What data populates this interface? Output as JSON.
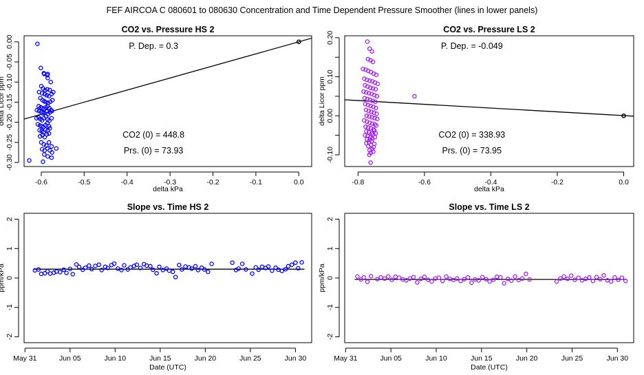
{
  "page_title": "FEF   AIRCOA C   080601 to 080630   Concentration and Time Dependent Pressure Smoother (lines in lower panels)",
  "colors": {
    "hs": "#0000ff",
    "ls": "#a020f0",
    "line": "#000000"
  },
  "chart_data": [
    {
      "type": "scatter",
      "title": "CO2 vs. Pressure HS 2",
      "xlabel": "delta kPa",
      "ylabel": "delta Licor ppm",
      "xlim": [
        -0.64,
        0.03
      ],
      "ylim": [
        -0.31,
        0.015
      ],
      "xticks": [
        -0.6,
        -0.5,
        -0.4,
        -0.3,
        -0.2,
        -0.1,
        0.0
      ],
      "xtick_labels": [
        "-0.6",
        "-0.5",
        "-0.4",
        "-0.3",
        "-0.2",
        "-0.1",
        "0.0"
      ],
      "yticks": [
        0.0,
        -0.05,
        -0.1,
        -0.15,
        -0.2,
        -0.25,
        -0.3
      ],
      "ytick_labels": [
        "0.00",
        "-0.05",
        "-0.10",
        "-0.15",
        "-0.20",
        "-0.25",
        "-0.30"
      ],
      "annotations": [
        "P. Dep. =  0.3",
        "CO2 (0) =  448.8",
        "Prs. (0) = 73.93"
      ],
      "fit_line": {
        "x": [
          -0.64,
          0.03
        ],
        "y": [
          -0.192,
          0.009
        ]
      },
      "reference_point": [
        0.0,
        0.0
      ],
      "x": [
        -0.609,
        -0.601,
        -0.594,
        -0.593,
        -0.585,
        -0.586,
        -0.585,
        -0.578,
        -0.6,
        -0.596,
        -0.591,
        -0.586,
        -0.58,
        -0.605,
        -0.598,
        -0.592,
        -0.587,
        -0.582,
        -0.576,
        -0.572,
        -0.602,
        -0.597,
        -0.593,
        -0.589,
        -0.584,
        -0.579,
        -0.574,
        -0.606,
        -0.601,
        -0.597,
        -0.593,
        -0.589,
        -0.585,
        -0.581,
        -0.577,
        -0.61,
        -0.605,
        -0.6,
        -0.596,
        -0.592,
        -0.588,
        -0.584,
        -0.58,
        -0.575,
        -0.611,
        -0.606,
        -0.602,
        -0.598,
        -0.594,
        -0.589,
        -0.585,
        -0.581,
        -0.576,
        -0.608,
        -0.603,
        -0.599,
        -0.595,
        -0.59,
        -0.586,
        -0.582,
        -0.604,
        -0.599,
        -0.595,
        -0.59,
        -0.585,
        -0.58,
        -0.603,
        -0.597,
        -0.592,
        -0.587,
        -0.582,
        -0.6,
        -0.594,
        -0.588,
        -0.582,
        -0.576,
        -0.565,
        -0.598,
        -0.592,
        -0.586,
        -0.58,
        -0.575,
        -0.593,
        -0.585,
        -0.576,
        -0.628,
        -0.596
      ],
      "y": [
        -0.005,
        -0.065,
        -0.078,
        -0.08,
        -0.08,
        -0.083,
        -0.09,
        -0.1,
        -0.11,
        -0.116,
        -0.12,
        -0.118,
        -0.12,
        -0.125,
        -0.128,
        -0.13,
        -0.133,
        -0.135,
        -0.13,
        -0.125,
        -0.14,
        -0.145,
        -0.148,
        -0.15,
        -0.152,
        -0.149,
        -0.145,
        -0.16,
        -0.163,
        -0.165,
        -0.167,
        -0.163,
        -0.16,
        -0.165,
        -0.17,
        -0.17,
        -0.172,
        -0.175,
        -0.178,
        -0.177,
        -0.173,
        -0.18,
        -0.175,
        -0.172,
        -0.19,
        -0.188,
        -0.192,
        -0.195,
        -0.19,
        -0.185,
        -0.193,
        -0.196,
        -0.19,
        -0.205,
        -0.208,
        -0.21,
        -0.212,
        -0.207,
        -0.203,
        -0.21,
        -0.22,
        -0.222,
        -0.225,
        -0.218,
        -0.22,
        -0.215,
        -0.235,
        -0.232,
        -0.237,
        -0.23,
        -0.228,
        -0.25,
        -0.255,
        -0.258,
        -0.25,
        -0.26,
        -0.265,
        -0.267,
        -0.27,
        -0.265,
        -0.27,
        -0.275,
        -0.28,
        -0.285,
        -0.288,
        -0.295,
        -0.298
      ]
    },
    {
      "type": "scatter",
      "title": "CO2 vs. Pressure LS 2",
      "xlabel": "delta kPa",
      "ylabel": "delta Licor ppm",
      "xlim": [
        -0.84,
        0.03
      ],
      "ylim": [
        -0.13,
        0.205
      ],
      "xticks": [
        -0.8,
        -0.6,
        -0.4,
        -0.2,
        0.0
      ],
      "xtick_labels": [
        "-0.8",
        "-0.6",
        "-0.4",
        "-0.2",
        "0.0"
      ],
      "yticks": [
        0.2,
        0.15,
        0.1,
        0.05,
        0.0,
        -0.05,
        -0.1
      ],
      "ytick_labels": [
        "0.20",
        "",
        "0.10",
        "",
        "0.00",
        "",
        "-0.10"
      ],
      "annotations": [
        "P. Dep. =  -0.049",
        "CO2 (0) =  338.93",
        "Prs. (0) = 73.95"
      ],
      "fit_line": {
        "x": [
          -0.84,
          0.03
        ],
        "y": [
          0.041,
          -0.001
        ]
      },
      "reference_point": [
        0.0,
        0.0
      ],
      "x": [
        -0.772,
        -0.765,
        -0.758,
        -0.77,
        -0.762,
        -0.755,
        -0.785,
        -0.777,
        -0.769,
        -0.761,
        -0.753,
        -0.745,
        -0.781,
        -0.773,
        -0.765,
        -0.757,
        -0.749,
        -0.741,
        -0.779,
        -0.771,
        -0.763,
        -0.755,
        -0.747,
        -0.783,
        -0.775,
        -0.767,
        -0.759,
        -0.751,
        -0.743,
        -0.78,
        -0.772,
        -0.764,
        -0.756,
        -0.748,
        -0.778,
        -0.77,
        -0.762,
        -0.754,
        -0.746,
        -0.776,
        -0.768,
        -0.76,
        -0.752,
        -0.744,
        -0.774,
        -0.766,
        -0.758,
        -0.75,
        -0.742,
        -0.781,
        -0.773,
        -0.765,
        -0.757,
        -0.749,
        -0.777,
        -0.769,
        -0.761,
        -0.753,
        -0.745,
        -0.775,
        -0.767,
        -0.759,
        -0.751,
        -0.779,
        -0.771,
        -0.763,
        -0.755,
        -0.747,
        -0.773,
        -0.765,
        -0.757,
        -0.749,
        -0.775,
        -0.767,
        -0.759,
        -0.751,
        -0.769,
        -0.761,
        -0.753,
        -0.765,
        -0.757,
        -0.762,
        -0.754,
        -0.766,
        -0.63,
        -0.762
      ],
      "y": [
        0.19,
        0.172,
        0.165,
        0.145,
        0.142,
        0.138,
        0.12,
        0.118,
        0.115,
        0.112,
        0.108,
        0.105,
        0.095,
        0.092,
        0.09,
        0.088,
        0.085,
        0.082,
        0.078,
        0.075,
        0.072,
        0.07,
        0.068,
        0.062,
        0.06,
        0.058,
        0.056,
        0.053,
        0.05,
        0.045,
        0.043,
        0.041,
        0.038,
        0.036,
        0.03,
        0.028,
        0.025,
        0.023,
        0.02,
        0.015,
        0.012,
        0.01,
        0.008,
        0.005,
        0.0,
        -0.002,
        -0.004,
        -0.006,
        -0.008,
        -0.012,
        -0.015,
        -0.018,
        -0.02,
        -0.022,
        -0.028,
        -0.03,
        -0.032,
        -0.035,
        -0.025,
        -0.04,
        -0.042,
        -0.045,
        -0.038,
        -0.05,
        -0.052,
        -0.055,
        -0.048,
        -0.045,
        -0.06,
        -0.062,
        -0.058,
        -0.055,
        -0.07,
        -0.068,
        -0.065,
        -0.072,
        -0.078,
        -0.075,
        -0.08,
        -0.088,
        -0.085,
        -0.095,
        -0.092,
        -0.1,
        0.05,
        -0.12
      ]
    },
    {
      "type": "scatter",
      "title": "Slope vs. Time HS 2",
      "xlabel": "Date (UTC)",
      "ylabel": "ppm/kPa",
      "xlim": [
        -0.1,
        31.8
      ],
      "ylim": [
        -2.2,
        2.2
      ],
      "xticks": [
        0,
        5,
        10,
        15,
        20,
        25,
        30
      ],
      "xtick_labels": [
        "May 31",
        "Jun 05",
        "Jun 10",
        "Jun 15",
        "Jun 20",
        "Jun 25",
        "Jun 30"
      ],
      "yticks": [
        -2,
        -1,
        0,
        1,
        2
      ],
      "ytick_labels": [
        "-2",
        "-1",
        "0",
        "1",
        "2"
      ],
      "fit_line": {
        "x": [
          1.0,
          31.0
        ],
        "y": [
          0.3,
          0.3
        ]
      },
      "x": [
        1.1,
        1.5,
        1.8,
        2.2,
        2.5,
        2.8,
        3.2,
        3.5,
        3.9,
        4.3,
        4.6,
        5.0,
        5.3,
        5.7,
        6.0,
        6.4,
        6.7,
        7.1,
        7.4,
        7.8,
        8.2,
        8.5,
        8.9,
        9.2,
        9.6,
        9.9,
        10.3,
        10.7,
        11.0,
        11.4,
        11.7,
        12.1,
        12.4,
        12.8,
        13.2,
        13.5,
        13.9,
        14.2,
        14.6,
        14.9,
        15.3,
        15.7,
        16.0,
        16.4,
        16.7,
        17.1,
        17.4,
        17.8,
        18.2,
        18.5,
        18.9,
        19.2,
        19.6,
        19.9,
        20.3,
        20.7,
        23.0,
        23.4,
        23.7,
        24.1,
        24.5,
        25.2,
        25.6,
        25.9,
        26.3,
        26.7,
        27.0,
        27.4,
        27.8,
        28.1,
        28.5,
        28.9,
        29.2,
        29.6,
        30.0,
        30.3,
        30.7
      ],
      "y": [
        0.26,
        0.29,
        0.14,
        0.16,
        0.23,
        0.15,
        0.18,
        0.22,
        0.2,
        0.28,
        0.17,
        0.31,
        0.13,
        0.46,
        0.38,
        0.28,
        0.35,
        0.42,
        0.3,
        0.41,
        0.45,
        0.27,
        0.38,
        0.34,
        0.44,
        0.49,
        0.32,
        0.27,
        0.43,
        0.29,
        0.36,
        0.41,
        0.45,
        0.34,
        0.47,
        0.42,
        0.4,
        0.28,
        0.16,
        0.38,
        0.27,
        0.32,
        0.25,
        0.21,
        0.03,
        0.44,
        0.29,
        0.39,
        0.36,
        0.32,
        0.4,
        0.27,
        0.35,
        0.29,
        0.21,
        0.48,
        0.52,
        0.27,
        0.32,
        0.48,
        0.29,
        0.15,
        0.36,
        0.28,
        0.38,
        0.34,
        0.39,
        0.25,
        0.35,
        0.28,
        0.24,
        0.3,
        0.4,
        0.45,
        0.52,
        0.33,
        0.53
      ]
    },
    {
      "type": "scatter",
      "title": "Slope vs. Time LS 2",
      "xlabel": "Date (UTC)",
      "ylabel": "ppm/kPa",
      "xlim": [
        -0.1,
        31.8
      ],
      "ylim": [
        -2.2,
        2.2
      ],
      "xticks": [
        0,
        5,
        10,
        15,
        20,
        25,
        30
      ],
      "xtick_labels": [
        "May 31",
        "Jun 05",
        "Jun 10",
        "Jun 15",
        "Jun 20",
        "Jun 25",
        "Jun 30"
      ],
      "yticks": [
        -2,
        -1,
        0,
        1,
        2
      ],
      "ytick_labels": [
        "-2",
        "-1",
        "0",
        "1",
        "2"
      ],
      "fit_line": {
        "x": [
          1.0,
          31.0
        ],
        "y": [
          -0.05,
          -0.05
        ]
      },
      "x": [
        1.3,
        1.7,
        2.0,
        2.4,
        2.8,
        3.5,
        3.9,
        4.3,
        4.7,
        5.1,
        5.5,
        5.9,
        6.3,
        6.7,
        7.1,
        7.5,
        7.9,
        8.3,
        8.7,
        9.1,
        9.5,
        9.9,
        10.3,
        10.7,
        11.1,
        11.5,
        11.9,
        12.3,
        12.7,
        13.1,
        13.5,
        13.9,
        14.3,
        14.7,
        15.1,
        15.5,
        15.9,
        16.3,
        16.7,
        17.1,
        17.5,
        17.9,
        18.3,
        18.7,
        19.1,
        19.5,
        19.9,
        20.3,
        23.3,
        23.7,
        24.1,
        24.5,
        24.9,
        25.3,
        25.7,
        26.1,
        26.5,
        26.9,
        27.3,
        27.7,
        28.1,
        28.5,
        28.9,
        29.3,
        29.7,
        30.1,
        30.5,
        30.9
      ],
      "y": [
        0.05,
        -0.05,
        0.02,
        -0.13,
        0.06,
        -0.04,
        0.02,
        -0.02,
        0.05,
        -0.06,
        0.04,
        0.01,
        -0.05,
        -0.08,
        -0.02,
        0.03,
        -0.15,
        -0.03,
        0.04,
        -0.06,
        -0.12,
        -0.02,
        0.01,
        -0.1,
        0.05,
        -0.03,
        -0.07,
        -0.02,
        -0.1,
        -0.04,
        0.02,
        -0.16,
        -0.05,
        -0.08,
        0.03,
        -0.04,
        -0.12,
        -0.06,
        0.04,
        0.02,
        -0.18,
        -0.03,
        -0.09,
        0.05,
        -0.07,
        -0.02,
        0.14,
        -0.05,
        -0.12,
        -0.02,
        0.05,
        -0.03,
        0.08,
        -0.06,
        0.01,
        -0.08,
        -0.03,
        0.02,
        -0.1,
        0.03,
        -0.04,
        0.09,
        -0.08,
        -0.12,
        0.02,
        -0.06,
        0.01,
        -0.1
      ]
    }
  ]
}
